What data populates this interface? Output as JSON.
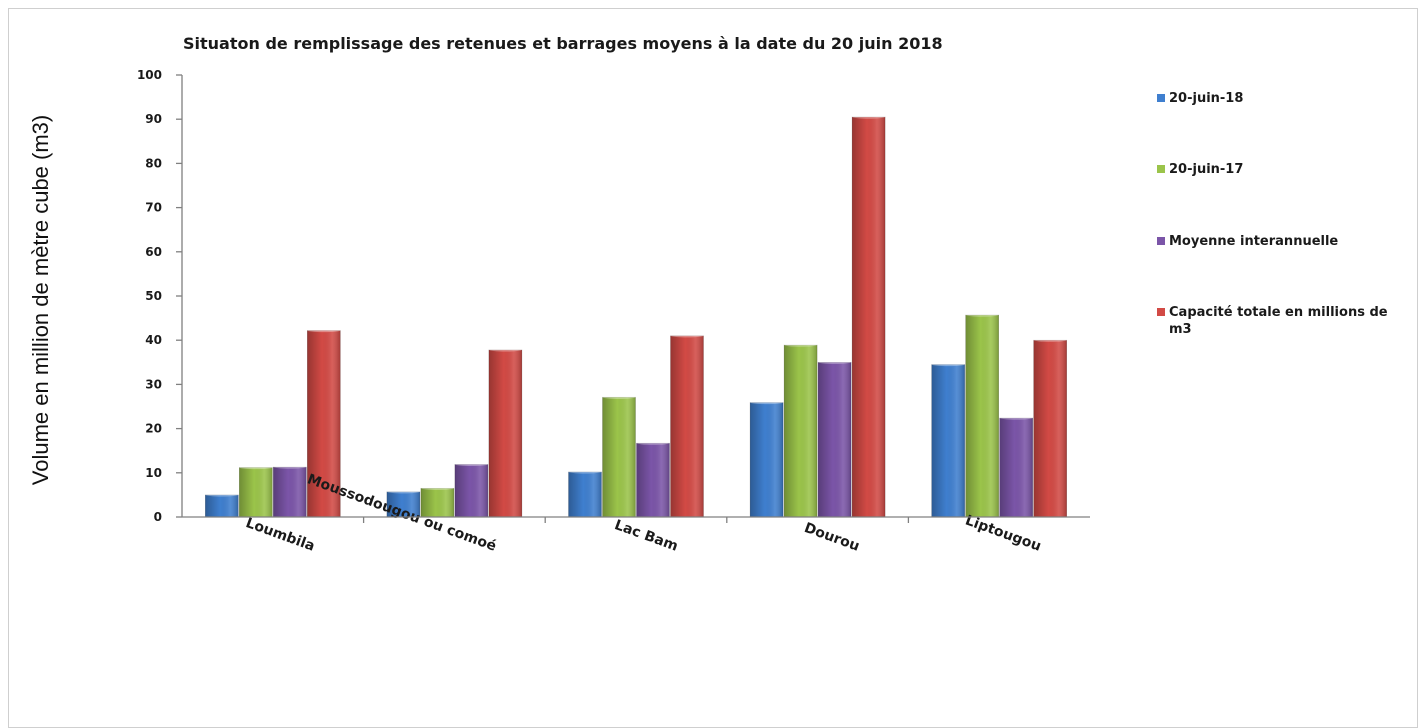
{
  "chart_data": {
    "type": "bar",
    "title": "Situaton de remplissage des retenues et barrages moyens à la date du 20 juin 2018",
    "xlabel": "",
    "ylabel": "Volume en million de mètre cube (m3)",
    "ylim": [
      0,
      100
    ],
    "yticks": [
      0,
      10,
      20,
      30,
      40,
      50,
      60,
      70,
      80,
      90,
      100
    ],
    "grid": false,
    "legend_position": "right",
    "categories": [
      "Loumbila",
      "Moussodougou ou comoé",
      "Lac Bam",
      "Dourou",
      "Liptougou"
    ],
    "series": [
      {
        "name": "20-juin-18",
        "color": "#3f7fcf",
        "values": [
          5,
          5.7,
          10.2,
          25.9,
          34.5
        ]
      },
      {
        "name": "20-juin-17",
        "color": "#9bc44a",
        "values": [
          11.2,
          6.5,
          27.1,
          38.9,
          45.7
        ]
      },
      {
        "name": "Moyenne interannuelle",
        "color": "#7b55a8",
        "values": [
          11.3,
          11.9,
          16.7,
          35,
          22.4
        ]
      },
      {
        "name": "Capacité totale en millions de m3",
        "color": "#d24a45",
        "values": [
          42.2,
          37.8,
          41,
          90.5,
          40
        ]
      }
    ]
  }
}
